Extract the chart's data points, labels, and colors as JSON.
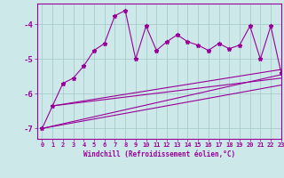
{
  "bg_color": "#cce8e8",
  "grid_color": "#aacccc",
  "line_color": "#990099",
  "marker_style": "*",
  "xlabel": "Windchill (Refroidissement éolien,°C)",
  "xlim": [
    -0.5,
    23
  ],
  "ylim": [
    -7.3,
    -3.4
  ],
  "yticks": [
    -7,
    -6,
    -5,
    -4
  ],
  "xticks": [
    0,
    1,
    2,
    3,
    4,
    5,
    6,
    7,
    8,
    9,
    10,
    11,
    12,
    13,
    14,
    15,
    16,
    17,
    18,
    19,
    20,
    21,
    22,
    23
  ],
  "main_series_x": [
    0,
    1,
    2,
    3,
    4,
    5,
    6,
    7,
    8,
    9,
    10,
    11,
    12,
    13,
    14,
    15,
    16,
    17,
    18,
    19,
    20,
    21,
    22,
    23
  ],
  "main_series_y": [
    -7.0,
    -6.35,
    -5.7,
    -5.55,
    -5.2,
    -4.75,
    -4.55,
    -3.75,
    -3.6,
    -5.0,
    -4.05,
    -4.75,
    -4.5,
    -4.3,
    -4.5,
    -4.6,
    -4.75,
    -4.55,
    -4.7,
    -4.6,
    -4.05,
    -5.0,
    -4.05,
    -5.4
  ],
  "line2_x": [
    1,
    23
  ],
  "line2_y": [
    -6.35,
    -5.3
  ],
  "line3_x": [
    0,
    23
  ],
  "line3_y": [
    -7.0,
    -5.45
  ],
  "line4_x": [
    0,
    23
  ],
  "line4_y": [
    -7.0,
    -5.75
  ],
  "line5_x": [
    1,
    23
  ],
  "line5_y": [
    -6.35,
    -5.55
  ]
}
